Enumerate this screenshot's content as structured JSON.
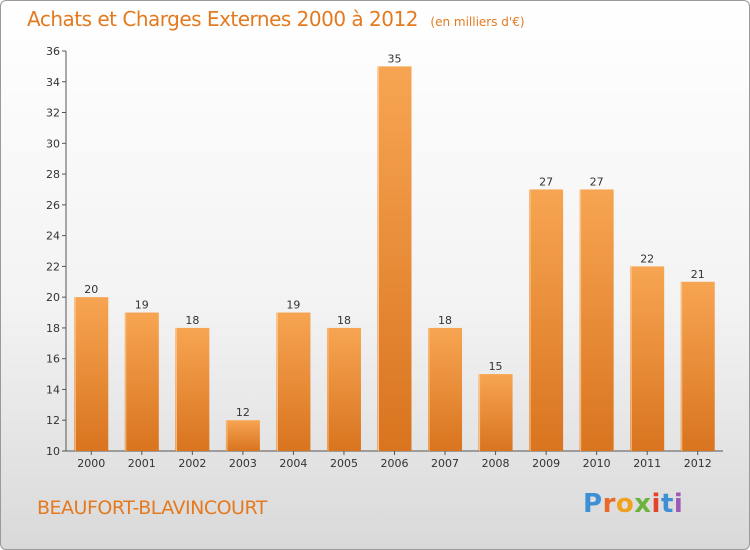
{
  "title": "Achats et Charges Externes 2000 à 2012",
  "subtitle": "(en milliers d'€)",
  "location": "BEAUFORT-BLAVINCOURT",
  "logo": {
    "letters": [
      "P",
      "r",
      "o",
      "x",
      "i",
      "t",
      "i"
    ],
    "colors": [
      "#3d8fd6",
      "#e8692a",
      "#f0a21e",
      "#6cb33e",
      "#e5442c",
      "#3d8fd6",
      "#9c59b6"
    ]
  },
  "colors": {
    "bar_top": "#f7a552",
    "bar_bottom": "#d9741f",
    "accent": "#e47a1f"
  },
  "chart_data": {
    "type": "bar",
    "categories": [
      "2000",
      "2001",
      "2002",
      "2003",
      "2004",
      "2005",
      "2006",
      "2007",
      "2008",
      "2009",
      "2010",
      "2011",
      "2012"
    ],
    "values": [
      20,
      19,
      18,
      12,
      19,
      18,
      35,
      18,
      15,
      27,
      27,
      22,
      21
    ],
    "title": "Achats et Charges Externes 2000 à 2012",
    "subtitle": "(en milliers d'€)",
    "ylim": [
      10,
      36
    ],
    "yticks": [
      10,
      12,
      14,
      16,
      18,
      20,
      22,
      24,
      26,
      28,
      30,
      32,
      34,
      36
    ],
    "grid": false,
    "legend": "none"
  }
}
